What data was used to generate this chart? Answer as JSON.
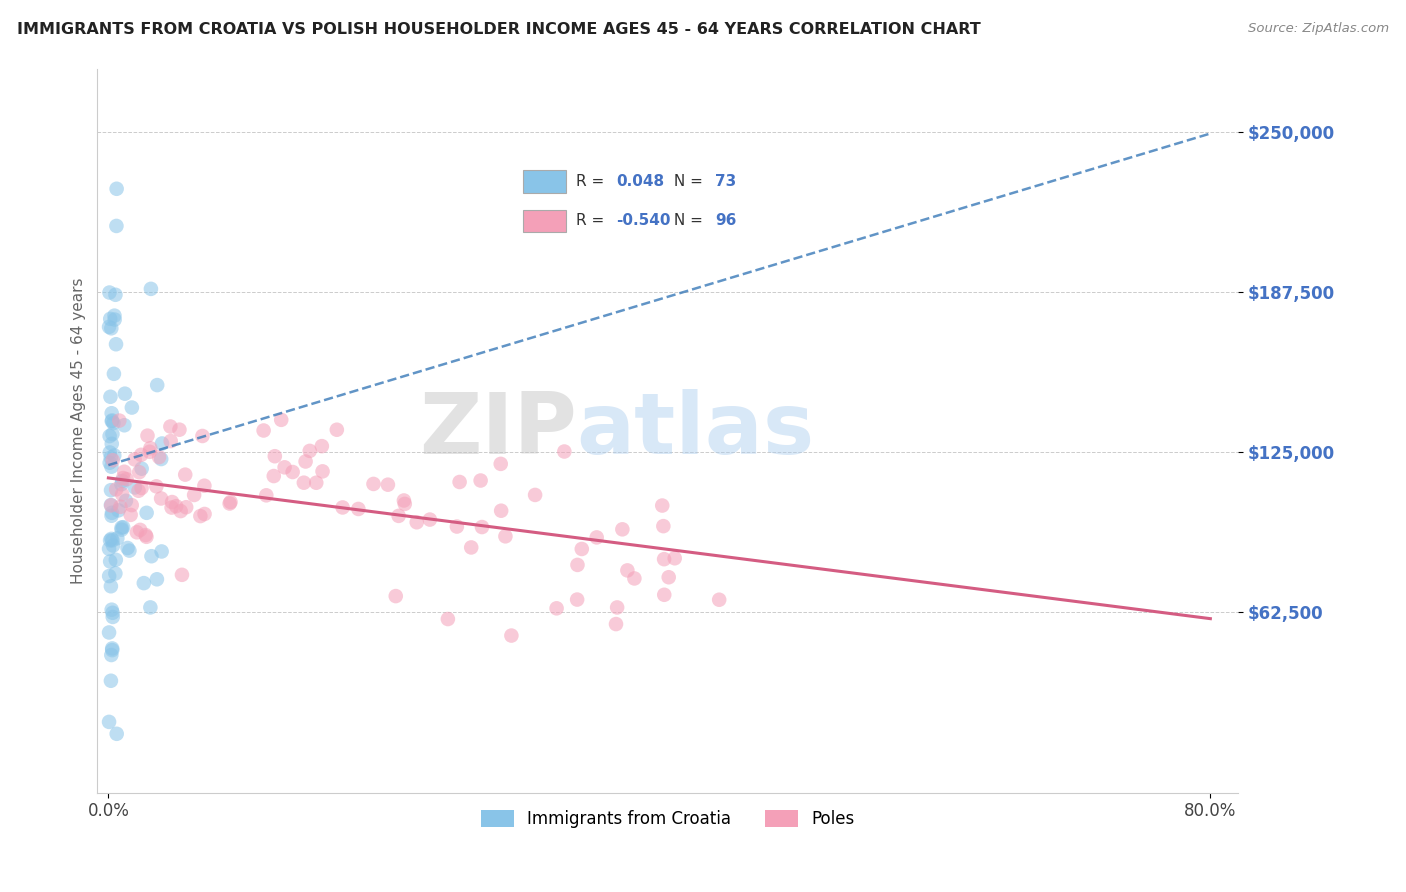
{
  "title": "IMMIGRANTS FROM CROATIA VS POLISH HOUSEHOLDER INCOME AGES 45 - 64 YEARS CORRELATION CHART",
  "source": "Source: ZipAtlas.com",
  "ylabel": "Householder Income Ages 45 - 64 years",
  "yticks": [
    62500,
    125000,
    187500,
    250000
  ],
  "ytick_labels": [
    "$62,500",
    "$125,000",
    "$187,500",
    "$250,000"
  ],
  "xlim": [
    0.0,
    0.8
  ],
  "ylim": [
    0,
    270000
  ],
  "legend_croatia_r": 0.048,
  "legend_croatia_n": 73,
  "legend_polish_r": -0.54,
  "legend_polish_n": 96,
  "blue_scatter_color": "#89c4e8",
  "pink_scatter_color": "#f4a0b8",
  "blue_line_color": "#3a7ab8",
  "pink_line_color": "#d45c82",
  "text_color_blue": "#4472c4",
  "title_color": "#222222",
  "source_color": "#888888",
  "ylabel_color": "#666666",
  "grid_color": "#cccccc",
  "watermark_zip_color": "#aaaaaa",
  "watermark_atlas_color": "#88b8e8"
}
